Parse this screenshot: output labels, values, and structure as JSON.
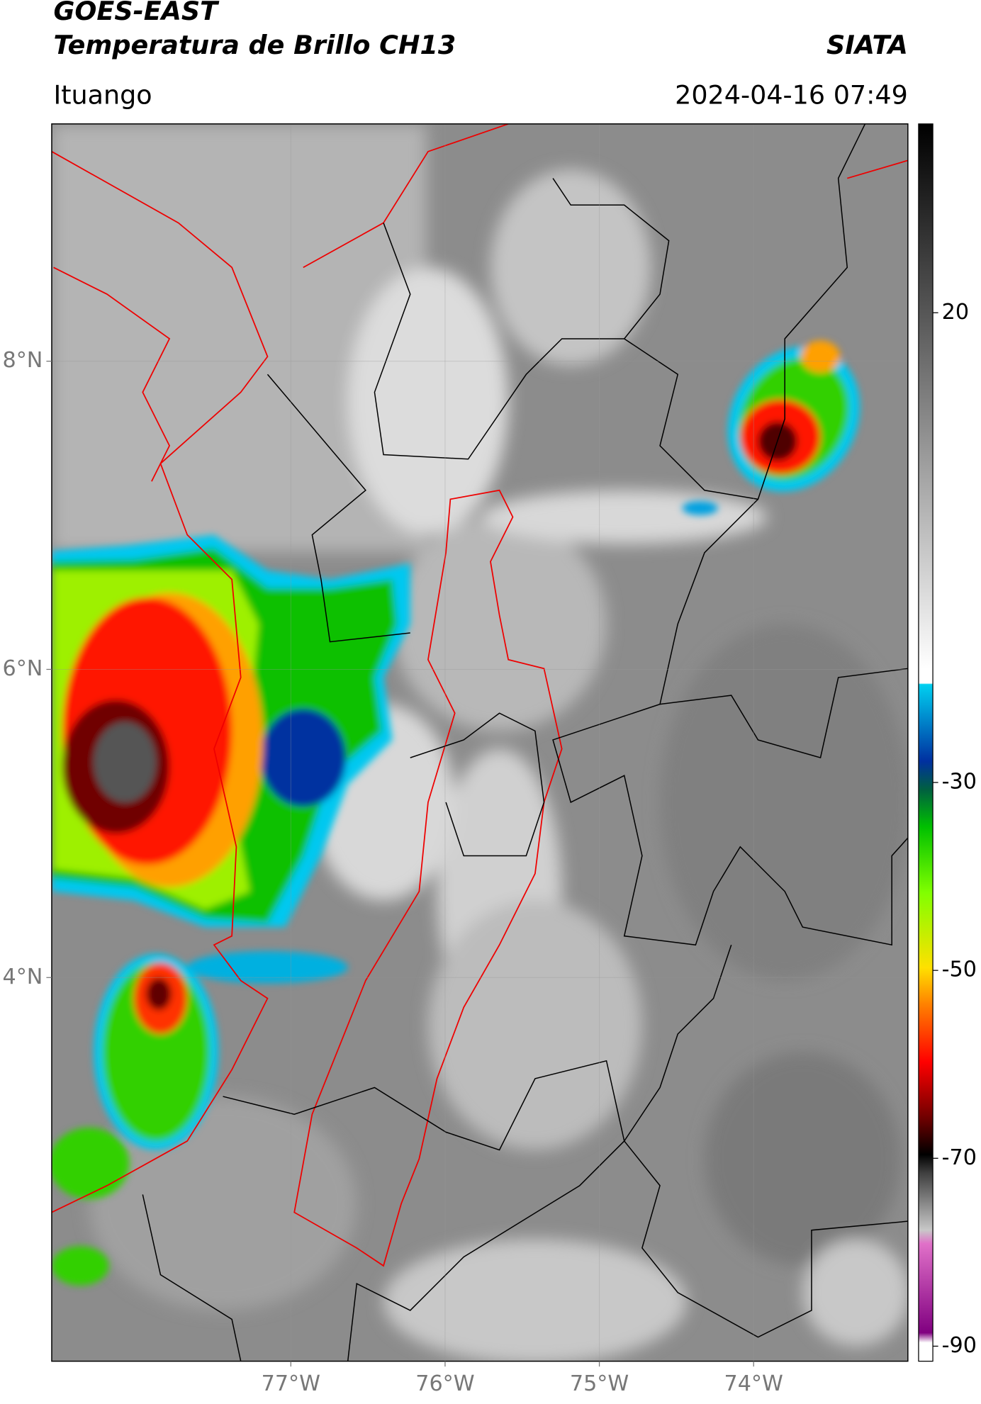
{
  "header": {
    "title": "GOES-EAST",
    "subtitle": "Temperatura de Brillo CH13",
    "agency": "SIATA",
    "location": "Ituango",
    "datetime": "2024-04-16 07:49"
  },
  "map": {
    "xlim": [
      -78.55,
      -73.0
    ],
    "ylim": [
      1.51,
      9.54
    ],
    "xticks": [
      {
        "value": -77,
        "label": "77°W"
      },
      {
        "value": -76,
        "label": "76°W"
      },
      {
        "value": -75,
        "label": "75°W"
      },
      {
        "value": -74,
        "label": "74°W"
      }
    ],
    "yticks": [
      {
        "value": 8,
        "label": "8°N"
      },
      {
        "value": 6,
        "label": "6°N"
      },
      {
        "value": 4,
        "label": "4°N"
      }
    ]
  },
  "colorbar": {
    "lim": [
      -91.6,
      40.1
    ],
    "ticks": [
      20,
      -30,
      -50,
      -70,
      -90
    ]
  }
}
